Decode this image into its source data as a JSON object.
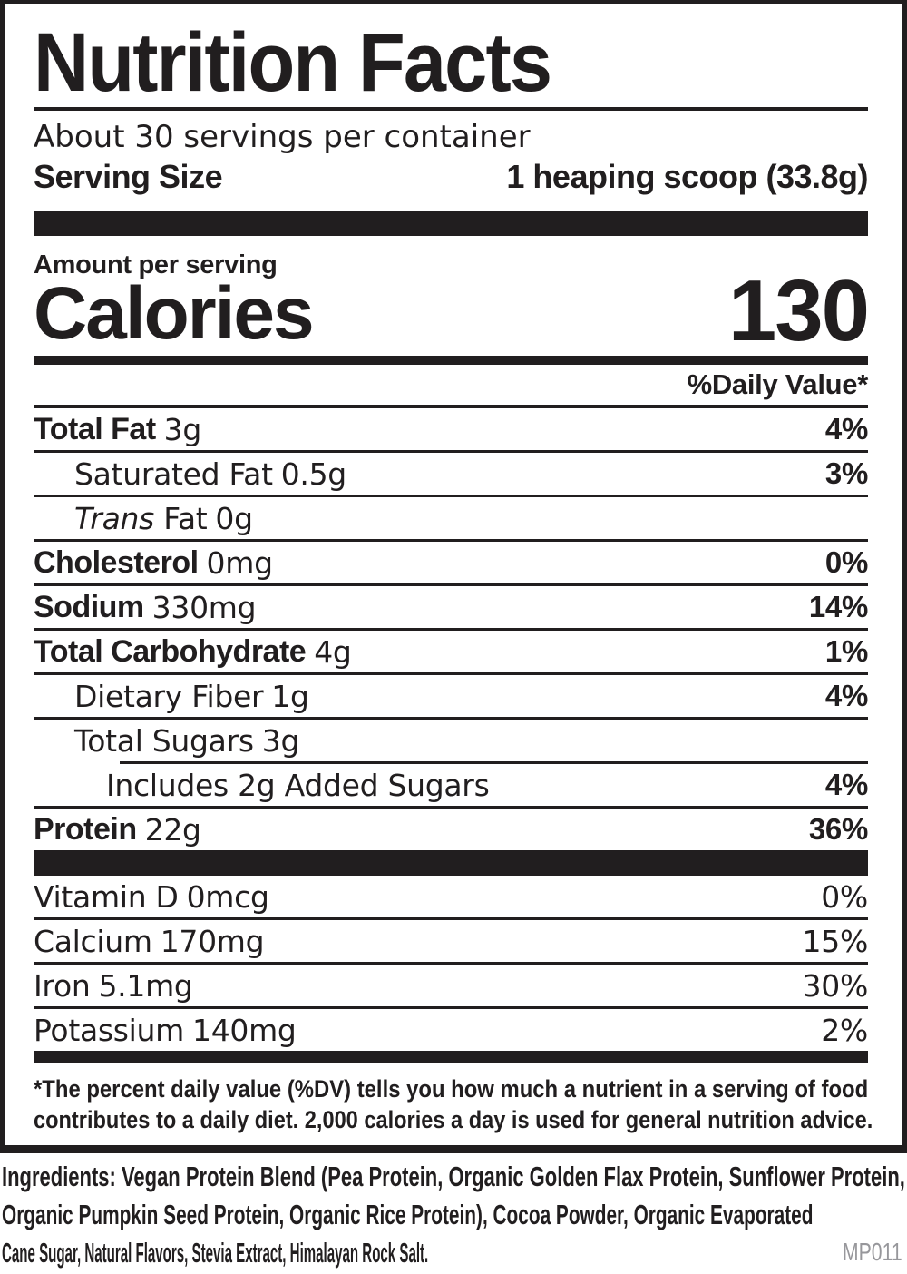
{
  "label": {
    "title": "Nutrition Facts",
    "servings_per_container": "About 30 servings per container",
    "serving_size": {
      "label": "Serving Size",
      "value": "1 heaping scoop (33.8g)"
    },
    "amount_per_serving": "Amount per serving",
    "calories": {
      "label": "Calories",
      "value": "130"
    },
    "daily_value_header": "%Daily Value*",
    "nutrients": [
      {
        "name": "Total Fat",
        "amount": "3g",
        "dv": "4%",
        "bold": true,
        "dv_bold": true,
        "indent": 0
      },
      {
        "name": "Saturated Fat",
        "amount": "0.5g",
        "dv": "3%",
        "bold": false,
        "dv_bold": true,
        "indent": 1
      },
      {
        "italic": "Trans",
        "name": " Fat",
        "amount": "0g",
        "dv": "",
        "bold": false,
        "dv_bold": false,
        "indent": 1
      },
      {
        "name": "Cholesterol",
        "amount": "0mg",
        "dv": "0%",
        "bold": true,
        "dv_bold": true,
        "indent": 0
      },
      {
        "name": "Sodium",
        "amount": "330mg",
        "dv": "14%",
        "bold": true,
        "dv_bold": true,
        "indent": 0
      },
      {
        "name": "Total Carbohydrate",
        "amount": "4g",
        "dv": "1%",
        "bold": true,
        "dv_bold": true,
        "indent": 0
      },
      {
        "name": "Dietary Fiber",
        "amount": "1g",
        "dv": "4%",
        "bold": false,
        "dv_bold": true,
        "indent": 1
      },
      {
        "name": "Total Sugars",
        "amount": "3g",
        "dv": "",
        "bold": false,
        "dv_bold": false,
        "indent": 1,
        "divider_indent": true
      },
      {
        "name": "Includes 2g Added Sugars",
        "amount": "",
        "dv": "4%",
        "bold": false,
        "dv_bold": true,
        "indent": 2
      },
      {
        "name": "Protein",
        "amount": "22g",
        "dv": "36%",
        "bold": true,
        "dv_bold": true,
        "indent": 0
      }
    ],
    "micronutrients": [
      {
        "name": "Vitamin D",
        "amount": "0mcg",
        "dv": "0%"
      },
      {
        "name": "Calcium",
        "amount": "170mg",
        "dv": "15%"
      },
      {
        "name": "Iron",
        "amount": "5.1mg",
        "dv": "30%"
      },
      {
        "name": "Potassium",
        "amount": "140mg",
        "dv": "2%"
      }
    ],
    "footnote_lines": [
      "*The percent daily value (%DV) tells you how much a nutrient in a serving of food",
      "contributes to a daily diet. 2,000 calories a day is used for general nutrition advice."
    ]
  },
  "ingredients_lines": [
    "Ingredients: Vegan Protein Blend (Pea Protein, Organic Golden Flax Protein, Sunflower Protein,",
    "Organic Pumpkin Seed Protein, Organic Rice Protein), Cocoa Powder, Organic Evaporated",
    "Cane Sugar, Natural Flavors, Stevia Extract, Himalayan Rock Salt."
  ],
  "product_code": "MP011",
  "colors": {
    "ink": "#211e1f",
    "muted": "#97979b"
  }
}
